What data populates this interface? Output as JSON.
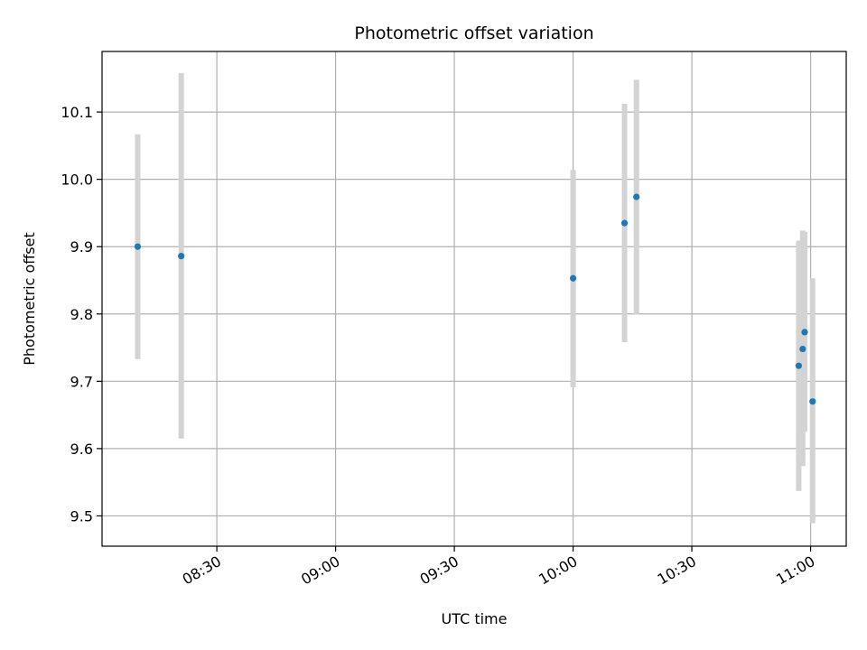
{
  "chart_data": {
    "type": "scatter",
    "title": "Photometric offset variation",
    "xlabel": "UTC time",
    "ylabel": "Photometric offset",
    "x_ticks": [
      "08:30",
      "09:00",
      "09:30",
      "10:00",
      "10:30",
      "11:00"
    ],
    "y_ticks": [
      "9.5",
      "9.6",
      "9.7",
      "9.8",
      "9.9",
      "10.0",
      "10.1"
    ],
    "xlim": [
      "08:01",
      "11:09"
    ],
    "ylim": [
      9.455,
      10.19
    ],
    "grid": true,
    "colors": {
      "point": "#1f77b4",
      "errorbar": "#d3d3d3",
      "grid": "#b0b0b0"
    },
    "series": [
      {
        "points": [
          {
            "x": "08:10",
            "y": 9.9,
            "lo": 9.733,
            "hi": 10.067
          },
          {
            "x": "08:21",
            "y": 9.886,
            "lo": 9.615,
            "hi": 10.158
          },
          {
            "x": "10:00",
            "y": 9.853,
            "lo": 9.691,
            "hi": 10.014
          },
          {
            "x": "10:13",
            "y": 9.935,
            "lo": 9.758,
            "hi": 10.112
          },
          {
            "x": "10:16",
            "y": 9.974,
            "lo": 9.799,
            "hi": 10.148
          },
          {
            "x": "10:57",
            "y": 9.723,
            "lo": 9.537,
            "hi": 9.909
          },
          {
            "x": "10:58",
            "y": 9.748,
            "lo": 9.574,
            "hi": 9.924
          },
          {
            "x": "10:58.5",
            "y": 9.773,
            "lo": 9.625,
            "hi": 9.922
          },
          {
            "x": "11:00.5",
            "y": 9.67,
            "lo": 9.489,
            "hi": 9.853
          }
        ]
      }
    ]
  }
}
